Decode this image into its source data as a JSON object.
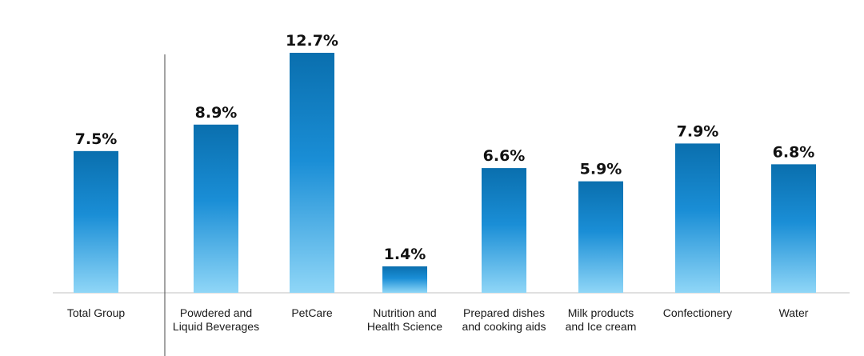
{
  "chart_data": {
    "type": "bar",
    "categories": [
      "Total Group",
      "Powdered and Liquid Beverages",
      "PetCare",
      "Nutrition and Health Science",
      "Prepared dishes and cooking aids",
      "Milk products and Ice cream",
      "Confectionery",
      "Water"
    ],
    "category_lines": [
      [
        "Total Group"
      ],
      [
        "Powdered and",
        "Liquid Beverages"
      ],
      [
        "PetCare"
      ],
      [
        "Nutrition and",
        "Health Science"
      ],
      [
        "Prepared dishes",
        "and cooking aids"
      ],
      [
        "Milk products",
        "and Ice cream"
      ],
      [
        "Confectionery"
      ],
      [
        "Water"
      ]
    ],
    "values": [
      7.5,
      8.9,
      12.7,
      1.4,
      6.6,
      5.9,
      7.9,
      6.8
    ],
    "value_labels": [
      "7.5%",
      "8.9%",
      "12.7%",
      "1.4%",
      "6.6%",
      "5.9%",
      "7.9%",
      "6.8%"
    ],
    "ylim": [
      0,
      12.7
    ],
    "grid": false,
    "separator_after_first": true,
    "colors": {
      "bar_top": "#0a6fae",
      "bar_mid": "#1a8ed6",
      "bar_bottom": "#8fd6f7",
      "axis": "#d6d6d6",
      "separator": "#666666"
    }
  }
}
